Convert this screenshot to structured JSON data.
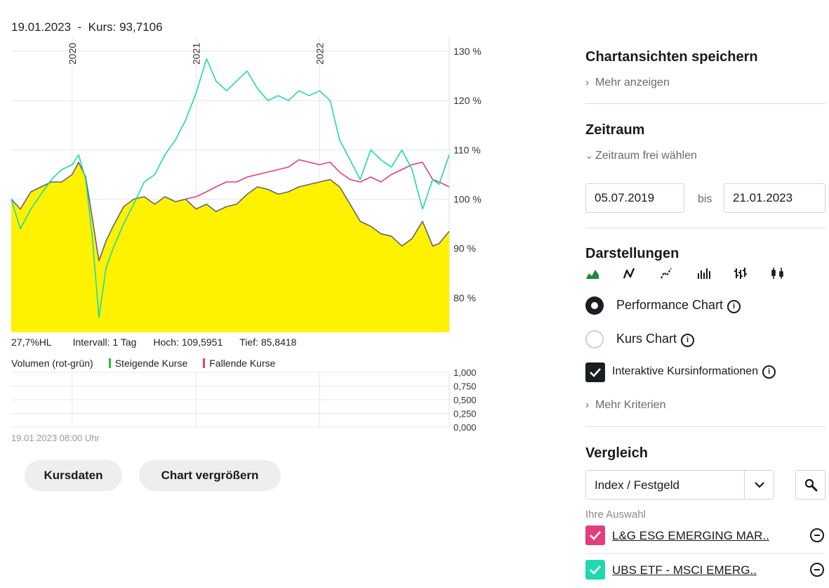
{
  "header": {
    "date": "19.01.2023",
    "separator": "-",
    "price_label": "Kurs: 93,7106"
  },
  "stats": {
    "hl": "27,7%HL",
    "interval": "Intervall: 1 Tag",
    "high": "Hoch: 109,5951",
    "low": "Tief: 85,8418"
  },
  "volume_legend": {
    "title": "Volumen (rot-grün)",
    "rising": "Steigende Kurse",
    "falling": "Fallende Kurse",
    "rising_color": "#22bb44",
    "falling_color": "#e8475a"
  },
  "footer_date": "19.01.2023 08:00 Uhr",
  "buttons": {
    "kursdaten": "Kursdaten",
    "vergroessern": "Chart vergrößern"
  },
  "colors": {
    "area_fill": "#fff200",
    "area_line": "#666666",
    "series_pink": "#e23d7c",
    "series_teal": "#1fd8b0",
    "dark": "#1a1d22"
  },
  "chart_data": [
    {
      "type": "line",
      "title": "",
      "x_ticks": [
        "2020",
        "2021",
        "2022"
      ],
      "y_ticks": [
        "130 %",
        "120 %",
        "110 %",
        "100 %",
        "90 %",
        "80 %"
      ],
      "ylim": [
        73,
        133
      ],
      "xlim": [
        "2019-07-05",
        "2023-01-19"
      ],
      "grid": true,
      "series": [
        {
          "style": "area",
          "color": "#666666",
          "fill": "#fff200",
          "points": [
            [
              "2019-07-05",
              100.0
            ],
            [
              "2019-08-01",
              98.0
            ],
            [
              "2019-09-01",
              101.5
            ],
            [
              "2019-10-01",
              102.5
            ],
            [
              "2019-11-01",
              103.5
            ],
            [
              "2019-12-01",
              103.5
            ],
            [
              "2020-01-01",
              105.0
            ],
            [
              "2020-01-20",
              107.5
            ],
            [
              "2020-02-10",
              104.5
            ],
            [
              "2020-03-01",
              96.0
            ],
            [
              "2020-03-20",
              87.5
            ],
            [
              "2020-04-10",
              91.5
            ],
            [
              "2020-05-01",
              94.5
            ],
            [
              "2020-06-01",
              98.5
            ],
            [
              "2020-07-01",
              100.0
            ],
            [
              "2020-08-01",
              100.5
            ],
            [
              "2020-09-01",
              99.0
            ],
            [
              "2020-10-01",
              100.5
            ],
            [
              "2020-11-01",
              99.5
            ],
            [
              "2020-12-01",
              100.0
            ],
            [
              "2021-01-01",
              98.0
            ],
            [
              "2021-02-01",
              99.0
            ],
            [
              "2021-03-01",
              97.5
            ],
            [
              "2021-04-01",
              98.5
            ],
            [
              "2021-05-01",
              99.0
            ],
            [
              "2021-06-01",
              101.0
            ],
            [
              "2021-07-01",
              102.5
            ],
            [
              "2021-08-01",
              102.0
            ],
            [
              "2021-09-01",
              101.0
            ],
            [
              "2021-10-01",
              101.5
            ],
            [
              "2021-11-01",
              102.5
            ],
            [
              "2021-12-01",
              103.0
            ],
            [
              "2022-01-01",
              103.5
            ],
            [
              "2022-02-01",
              104.0
            ],
            [
              "2022-03-01",
              102.5
            ],
            [
              "2022-04-01",
              99.0
            ],
            [
              "2022-05-01",
              95.5
            ],
            [
              "2022-06-01",
              94.5
            ],
            [
              "2022-07-01",
              93.0
            ],
            [
              "2022-08-01",
              92.5
            ],
            [
              "2022-09-01",
              90.5
            ],
            [
              "2022-10-01",
              92.0
            ],
            [
              "2022-11-01",
              95.5
            ],
            [
              "2022-12-01",
              90.5
            ],
            [
              "2022-12-20",
              91.0
            ],
            [
              "2023-01-19",
              93.5
            ]
          ]
        },
        {
          "style": "line",
          "color": "#e23d7c",
          "points": [
            [
              "2020-12-01",
              100.0
            ],
            [
              "2021-01-01",
              100.5
            ],
            [
              "2021-02-01",
              101.5
            ],
            [
              "2021-03-01",
              102.5
            ],
            [
              "2021-04-01",
              103.5
            ],
            [
              "2021-05-01",
              103.5
            ],
            [
              "2021-06-01",
              104.5
            ],
            [
              "2021-07-01",
              105.0
            ],
            [
              "2021-08-01",
              105.5
            ],
            [
              "2021-09-01",
              106.0
            ],
            [
              "2021-10-01",
              106.5
            ],
            [
              "2021-11-01",
              108.0
            ],
            [
              "2021-12-01",
              107.5
            ],
            [
              "2022-01-01",
              107.0
            ],
            [
              "2022-02-01",
              107.5
            ],
            [
              "2022-03-01",
              105.5
            ],
            [
              "2022-04-01",
              104.0
            ],
            [
              "2022-05-01",
              103.5
            ],
            [
              "2022-06-01",
              104.5
            ],
            [
              "2022-07-01",
              103.5
            ],
            [
              "2022-08-01",
              105.0
            ],
            [
              "2022-09-01",
              106.0
            ],
            [
              "2022-10-01",
              107.0
            ],
            [
              "2022-11-01",
              107.5
            ],
            [
              "2022-12-01",
              104.0
            ],
            [
              "2022-12-20",
              103.5
            ],
            [
              "2023-01-19",
              102.5
            ]
          ]
        },
        {
          "style": "line",
          "color": "#1fd8b0",
          "points": [
            [
              "2019-07-05",
              100.0
            ],
            [
              "2019-08-01",
              94.0
            ],
            [
              "2019-09-01",
              98.0
            ],
            [
              "2019-10-01",
              101.0
            ],
            [
              "2019-11-01",
              104.0
            ],
            [
              "2019-12-01",
              106.0
            ],
            [
              "2020-01-01",
              107.0
            ],
            [
              "2020-01-20",
              109.0
            ],
            [
              "2020-02-10",
              104.0
            ],
            [
              "2020-03-01",
              92.0
            ],
            [
              "2020-03-20",
              76.0
            ],
            [
              "2020-04-10",
              86.0
            ],
            [
              "2020-05-01",
              90.0
            ],
            [
              "2020-06-01",
              95.0
            ],
            [
              "2020-07-01",
              99.0
            ],
            [
              "2020-08-01",
              103.5
            ],
            [
              "2020-09-01",
              105.0
            ],
            [
              "2020-10-01",
              109.0
            ],
            [
              "2020-11-01",
              112.0
            ],
            [
              "2020-12-01",
              116.0
            ],
            [
              "2021-01-01",
              121.5
            ],
            [
              "2021-02-01",
              128.5
            ],
            [
              "2021-03-01",
              124.0
            ],
            [
              "2021-04-01",
              122.0
            ],
            [
              "2021-05-01",
              124.0
            ],
            [
              "2021-06-01",
              126.0
            ],
            [
              "2021-07-01",
              122.5
            ],
            [
              "2021-08-01",
              120.0
            ],
            [
              "2021-09-01",
              121.0
            ],
            [
              "2021-10-01",
              120.0
            ],
            [
              "2021-11-01",
              122.0
            ],
            [
              "2021-12-01",
              121.0
            ],
            [
              "2022-01-01",
              122.0
            ],
            [
              "2022-02-01",
              120.0
            ],
            [
              "2022-03-01",
              112.0
            ],
            [
              "2022-04-01",
              108.0
            ],
            [
              "2022-05-01",
              104.0
            ],
            [
              "2022-06-01",
              110.0
            ],
            [
              "2022-07-01",
              108.0
            ],
            [
              "2022-08-01",
              106.5
            ],
            [
              "2022-09-01",
              110.0
            ],
            [
              "2022-10-01",
              106.0
            ],
            [
              "2022-11-01",
              98.0
            ],
            [
              "2022-12-01",
              104.0
            ],
            [
              "2022-12-20",
              103.0
            ],
            [
              "2023-01-19",
              109.0
            ]
          ]
        }
      ]
    },
    {
      "type": "bar",
      "title": "Volumen (rot-grün)",
      "y_ticks": [
        "1,000",
        "0,750",
        "0,500",
        "0,250",
        "0,000"
      ],
      "ylim": [
        0,
        1
      ],
      "values": []
    }
  ],
  "sidebar": {
    "save": {
      "title": "Chartansichten speichern",
      "more": "Mehr anzeigen"
    },
    "period": {
      "title": "Zeitraum",
      "free": "Zeitraum frei wählen",
      "from": "05.07.2019",
      "to_label": "bis",
      "to": "21.01.2023"
    },
    "display": {
      "title": "Darstellungen",
      "icons": [
        "area-chart-icon",
        "line-chart-icon",
        "dotted-line-chart-icon",
        "bar-chart-icon",
        "ohlc-chart-icon",
        "candlestick-chart-icon"
      ],
      "performance": "Performance Chart",
      "price": "Kurs Chart",
      "interactive": "Interaktive Kursinformationen",
      "more": "Mehr Kriterien"
    },
    "compare": {
      "title": "Vergleich",
      "select_value": "Index / Festgeld",
      "selection_label": "Ihre Auswahl",
      "items": [
        {
          "label": "L&G ESG EMERGING MAR..",
          "color": "#e23d7c"
        },
        {
          "label": "UBS ETF - MSCI EMERG..",
          "color": "#1fd8b0"
        }
      ]
    }
  }
}
